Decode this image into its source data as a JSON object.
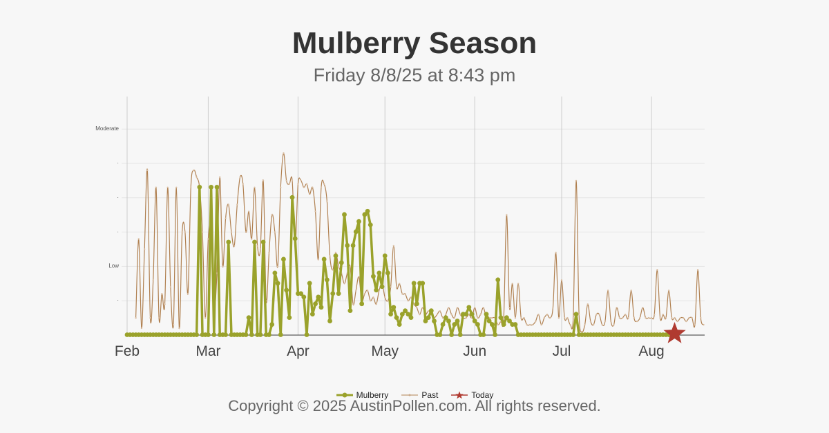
{
  "header": {
    "title": "Mulberry Season",
    "subtitle": "Friday 8/8/25 at 8:43 pm"
  },
  "footer": {
    "copyright": "Copyright © 2025 AustinPollen.com.  All rights reserved."
  },
  "legend": {
    "items": [
      {
        "label": "Mulberry",
        "color": "#9aa22b",
        "marker": "circle"
      },
      {
        "label": "Past",
        "color": "#b08050",
        "marker": "dot"
      },
      {
        "label": "Today",
        "color": "#b03a30",
        "marker": "star"
      }
    ]
  },
  "colors": {
    "current": "#9aa22b",
    "past": "#b08050",
    "today": "#b03a30",
    "grid": "#e6e6e6",
    "month_line": "#cccccc",
    "axis": "#333333"
  },
  "chart_data": {
    "type": "line",
    "title": "Mulberry Season",
    "subtitle": "Friday 8/8/25 at 8:43 pm",
    "xlabel": "",
    "ylabel": "",
    "y_tick_labels": [
      "",
      "·",
      "Low",
      "·",
      "·",
      "·",
      "Moderate"
    ],
    "y_tick_values": [
      0,
      1,
      2,
      3,
      4,
      5,
      6
    ],
    "ylim": [
      0,
      6.9
    ],
    "x_tick_labels": [
      "Feb",
      "Mar",
      "Apr",
      "May",
      "Jun",
      "Jul",
      "Aug"
    ],
    "x_tick_day_index": [
      0,
      28,
      59,
      89,
      120,
      150,
      181
    ],
    "grid": true,
    "legend_position": "bottom",
    "today_day_index": 189,
    "series": [
      {
        "name": "Mulberry",
        "x_start_day": 0,
        "values": [
          0,
          0,
          0,
          0,
          0,
          0,
          0,
          0,
          0,
          0,
          0,
          0,
          0,
          0,
          0,
          0,
          0,
          0,
          0,
          0,
          0,
          0,
          0,
          0,
          0,
          4.3,
          0,
          0,
          0,
          4.3,
          0,
          4.3,
          0,
          0,
          0,
          2.7,
          0,
          0,
          0,
          0,
          0,
          0,
          0.5,
          0,
          2.7,
          0,
          0,
          2.7,
          0,
          0,
          0.3,
          1.8,
          1.5,
          0,
          2.2,
          1.3,
          0.5,
          4.0,
          2.8,
          1.2,
          1.2,
          1.1,
          0,
          1.5,
          0.6,
          0.9,
          1.1,
          0.8,
          2.2,
          1.6,
          0.4,
          1.2,
          2.3,
          1.2,
          2.1,
          3.5,
          2.6,
          0.7,
          2.6,
          3.0,
          3.3,
          0.9,
          3.5,
          3.6,
          3.2,
          1.7,
          1.3,
          1.8,
          1.4,
          2.3,
          1.8,
          0.6,
          0.8,
          0.5,
          0.3,
          0.6,
          0.7,
          0.6,
          0.5,
          1.5,
          0.9,
          1.5,
          1.5,
          0.4,
          0.5,
          0.7,
          0.4,
          0,
          0,
          0.3,
          0.5,
          0.4,
          0,
          0.3,
          0.4,
          0,
          0.6,
          0.6,
          0.8,
          0.6,
          0.4,
          0.3,
          0,
          0,
          0.6,
          0.4,
          0.3,
          0,
          1.6,
          0.5,
          0.3,
          0.5,
          0.4,
          0.3,
          0.3,
          0,
          0,
          0,
          0,
          0,
          0,
          0,
          0,
          0,
          0,
          0,
          0,
          0,
          0,
          0,
          0,
          0,
          0,
          0,
          0,
          0.6,
          0,
          0,
          0,
          0,
          0,
          0,
          0,
          0,
          0,
          0,
          0,
          0,
          0,
          0,
          0,
          0,
          0,
          0,
          0,
          0,
          0,
          0,
          0,
          0,
          0,
          0,
          0,
          0,
          0,
          0,
          0,
          0,
          0,
          0,
          0,
          0,
          0,
          0,
          0,
          0,
          0,
          0,
          0,
          0,
          0,
          0,
          0,
          0
        ]
      },
      {
        "name": "Past",
        "x_start_day": 3,
        "values": [
          0.5,
          2.8,
          0.2,
          2.5,
          4.8,
          0.5,
          1.6,
          4.3,
          0.5,
          1.2,
          0.9,
          4.3,
          1.4,
          0.3,
          4.3,
          0.2,
          3.0,
          3.0,
          1.2,
          4.3,
          4.8,
          4.6,
          4.3,
          3.0,
          0.5,
          2.8,
          3.0,
          0.8,
          1.8,
          4.6,
          2.0,
          3.4,
          3.8,
          3.0,
          2.6,
          3.8,
          4.6,
          4.4,
          3.0,
          3.6,
          2.8,
          4.3,
          2.6,
          2.5,
          4.5,
          1.0,
          2.4,
          3.5,
          3.0,
          2.0,
          4.3,
          5.3,
          4.5,
          4.4,
          4.5,
          2.6,
          4.4,
          4.5,
          4.3,
          4.4,
          4.1,
          4.3,
          3.6,
          2.2,
          4.3,
          4.4,
          3.9,
          2.3,
          1.9,
          2.4,
          2.0,
          1.8,
          1.5,
          1.8,
          2.0,
          0.9,
          1.3,
          1.7,
          1.0,
          1.2,
          1.3,
          1.0,
          1.1,
          0.9,
          1.3,
          1.5,
          1.1,
          1.0,
          1.4,
          2.6,
          1.4,
          1.5,
          1.2,
          1.2,
          1.0,
          1.1,
          0.9,
          0.8,
          0.6,
          0.8,
          0.6,
          0.7,
          0.6,
          0.5,
          0.6,
          0.7,
          0.5,
          0.6,
          0.8,
          0.6,
          0.5,
          0.8,
          0.6,
          0.5,
          0.5,
          0.6,
          0.5,
          0.8,
          0.5,
          0.6,
          0.8,
          0.5,
          0.5,
          0.5,
          0.5,
          0.3,
          0.4,
          0.5,
          3.5,
          0.8,
          1.5,
          0.5,
          1.5,
          0.5,
          0.5,
          0.3,
          0.3,
          0.3,
          0.4,
          0.6,
          0.3,
          0.5,
          0.6,
          0.5,
          0.8,
          2.4,
          0.5,
          1.6,
          0.5,
          0.5,
          0.3,
          0.5,
          4.5,
          0.6,
          0.1,
          0.3,
          0.9,
          0.4,
          0.3,
          0.6,
          0.6,
          0.3,
          0.4,
          1.3,
          0.4,
          0.3,
          0.8,
          0.5,
          0.5,
          0.6,
          0.5,
          1.3,
          0.5,
          0.4,
          0.5,
          0.8,
          0.5,
          0.5,
          0.5,
          0.6,
          1.9,
          0.5,
          0.6,
          0.5,
          1.3,
          0.5,
          0.5,
          0.4,
          0.5,
          0.5,
          0.4,
          0.5,
          0.5,
          0.3,
          1.9,
          0.5,
          0.3,
          0.3,
          0.4,
          0.5,
          0.3,
          0.3,
          0.5,
          0.5,
          0.6,
          0.5,
          0.3,
          0.3,
          0.5
        ]
      },
      {
        "name": "Today",
        "points": [
          {
            "day": 189,
            "value": 0
          }
        ]
      }
    ]
  }
}
